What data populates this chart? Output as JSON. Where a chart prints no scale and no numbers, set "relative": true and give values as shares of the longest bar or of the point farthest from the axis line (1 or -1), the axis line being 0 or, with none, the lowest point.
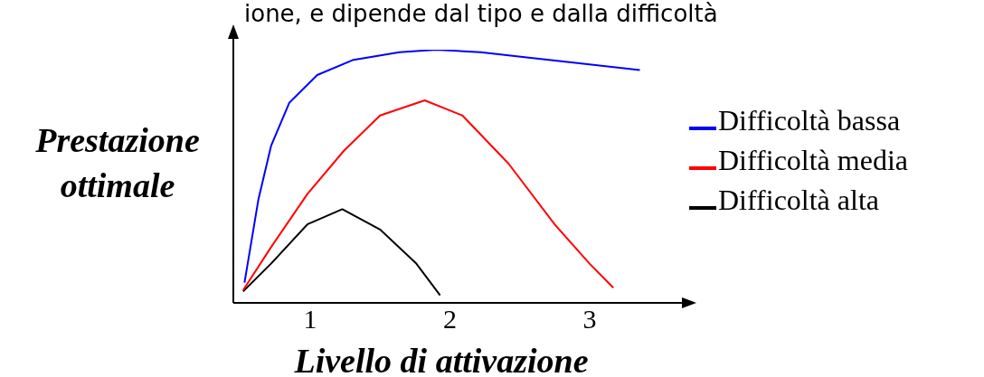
{
  "chart_data": {
    "type": "line",
    "xlabel": "Livello di attivazione",
    "ylabel": "Prestazione ottimale",
    "annotations": [
      "ione, e dipende dal tipo e dalla difficoltà"
    ],
    "relative": true,
    "xlim": [
      0.45,
      3.7
    ],
    "xticks": [
      1,
      2,
      3
    ],
    "legend": "right",
    "grid": false,
    "marker": "none",
    "series": [
      {
        "name": "Difficoltà bassa",
        "color": "#0000ff",
        "x": [
          0.53,
          0.63,
          0.72,
          0.85,
          1.05,
          1.31,
          1.64,
          1.9,
          2.22,
          2.55,
          2.87,
          3.36
        ],
        "values": [
          0.08,
          0.41,
          0.62,
          0.79,
          0.9,
          0.96,
          0.99,
          1,
          0.99,
          0.97,
          0.95,
          0.92
        ]
      },
      {
        "name": "Difficoltà media",
        "color": "#ff0000",
        "x": [
          0.52,
          0.72,
          0.98,
          1.24,
          1.5,
          1.82,
          2.09,
          2.42,
          2.75,
          3,
          3.17
        ],
        "values": [
          0.05,
          0.22,
          0.43,
          0.6,
          0.74,
          0.8,
          0.74,
          0.55,
          0.31,
          0.155,
          0.06
        ]
      },
      {
        "name": "Difficoltà alta",
        "color": "#000000",
        "x": [
          0.52,
          0.72,
          0.98,
          1.23,
          1.5,
          1.76,
          1.93
        ],
        "values": [
          0.045,
          0.155,
          0.31,
          0.37,
          0.29,
          0.155,
          0.03
        ]
      }
    ]
  }
}
